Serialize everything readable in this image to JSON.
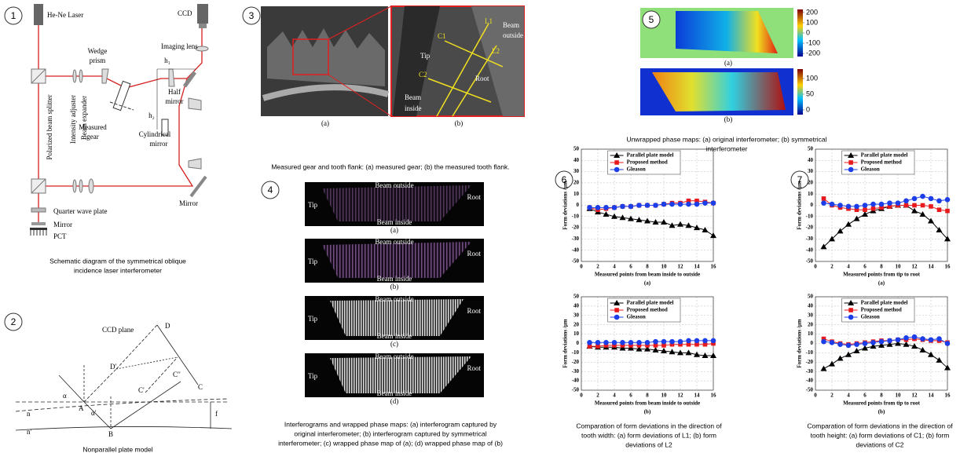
{
  "fig1": {
    "number": "1",
    "labels": [
      "He-Ne Laser",
      "CCD",
      "Imaging lens",
      "Wedge",
      "prism",
      "h₁",
      "Half",
      "mirror",
      "h₂",
      "Measured",
      "gear",
      "Cylindrical",
      "mirror",
      "Polarized beam splitter",
      "Intensity  adjuster",
      "Beam expander",
      "Mirror",
      "Quarter wave plate",
      "Mirror",
      "PCT"
    ],
    "caption": [
      "Schematic diagram of the symmetrical oblique",
      "incidence laser interferometer"
    ]
  },
  "fig2": {
    "number": "2",
    "labels": [
      "CCD  plane",
      "D",
      "D′",
      "C′′",
      "C",
      "C′",
      "α",
      "α′",
      "A",
      "B",
      "n",
      "n′",
      "f"
    ],
    "caption": [
      "Nonparallel plate model"
    ]
  },
  "fig3": {
    "number": "3",
    "labels": [
      "C1",
      "L1",
      "Beam",
      "outside",
      "Tip",
      "L2",
      "C2",
      "Root",
      "Beam",
      "inside"
    ],
    "sublabels": [
      "(a)",
      "(b)"
    ],
    "caption": [
      "Measured gear and tooth flank: (a) measured gear; (b) the measured tooth flank."
    ]
  },
  "fig4": {
    "number": "4",
    "images": [
      {
        "labels": [
          "Beam outside",
          "Tip",
          "Root",
          "Beam inside"
        ],
        "sublabel": "(a)"
      },
      {
        "labels": [
          "Beam outside",
          "Tip",
          "Root",
          "Beam inside"
        ],
        "sublabel": "(b)"
      },
      {
        "labels": [
          "Beam outside",
          "Tip",
          "Root",
          "Beam inside"
        ],
        "sublabel": "(c)"
      },
      {
        "labels": [
          "Beam outside",
          "Tip",
          "Root",
          "Beam inside"
        ],
        "sublabel": "(d)"
      }
    ],
    "caption": [
      "Interferograms and wrapped phase maps: (a) interferogram captured by",
      "original interferometer; (b) interferogram captured by symmetrical",
      "interferometer; (c) wrapped phase map of (a); (d) wrapped phase map of (b)"
    ]
  },
  "fig5": {
    "number": "5",
    "maps": [
      {
        "sublabel": "(a)",
        "colorbar": {
          "clim": [
            -230,
            230
          ],
          "ticks": [
            -200,
            -100,
            0,
            100,
            200
          ]
        }
      },
      {
        "sublabel": "(b)",
        "colorbar": {
          "clim": [
            -15,
            130
          ],
          "ticks": [
            0,
            50,
            100
          ]
        }
      }
    ],
    "caption": [
      "Unwrapped phase maps: (a) original interferometer; (b) symmetrical",
      "interferometer"
    ]
  },
  "fig6": {
    "number": "6",
    "charts": [
      {
        "type": "line",
        "ylabel": "Form deviations /μm",
        "xlabel": "Measured points from beam inside to outside",
        "sublabel": "(a)",
        "x": [
          1,
          2,
          3,
          4,
          5,
          6,
          7,
          8,
          9,
          10,
          11,
          12,
          13,
          14,
          15,
          16
        ],
        "xlim": [
          0,
          16
        ],
        "xticks": [
          0,
          2,
          4,
          6,
          8,
          10,
          12,
          14,
          16
        ],
        "ylim": [
          -50,
          50
        ],
        "yticks": [
          50,
          40,
          30,
          20,
          10,
          0,
          -10,
          -20,
          -30,
          -40,
          -50
        ],
        "grid": true,
        "legend": "top",
        "series": [
          {
            "name": "Parallel plate model",
            "color": "#000000",
            "marker": "triangle",
            "values": [
              -3,
              -6,
              -8,
              -10,
              -11,
              -12,
              -13,
              -14,
              -15,
              -15,
              -18,
              -17,
              -18,
              -20,
              -22,
              -27
            ]
          },
          {
            "name": "Proposed method",
            "color": "#e8191c",
            "marker": "square",
            "values": [
              -2,
              -4,
              -3,
              -2,
              -1,
              -1,
              0,
              0,
              0,
              1,
              2,
              2,
              4,
              4,
              3,
              2
            ]
          },
          {
            "name": "Gleason",
            "color": "#1c3ee8",
            "marker": "circle",
            "values": [
              -2,
              -2,
              -2,
              -2,
              -1,
              -1,
              0,
              0,
              0,
              1,
              1,
              1,
              1,
              1,
              2,
              2
            ]
          }
        ]
      },
      {
        "type": "line",
        "ylabel": "Form deviations /μm",
        "xlabel": "Measured points from beam inside to outside",
        "sublabel": "(b)",
        "x": [
          1,
          2,
          3,
          4,
          5,
          6,
          7,
          8,
          9,
          10,
          11,
          12,
          13,
          14,
          15,
          16
        ],
        "xlim": [
          0,
          16
        ],
        "xticks": [
          0,
          2,
          4,
          6,
          8,
          10,
          12,
          14,
          16
        ],
        "ylim": [
          -50,
          50
        ],
        "yticks": [
          50,
          40,
          30,
          20,
          10,
          0,
          -10,
          -20,
          -30,
          -40,
          -50
        ],
        "grid": true,
        "legend": "top",
        "series": [
          {
            "name": "Parallel plate model",
            "color": "#000000",
            "marker": "triangle",
            "values": [
              -3,
              -4,
              -4,
              -4,
              -5,
              -5,
              -6,
              -6,
              -7,
              -8,
              -9,
              -10,
              -10,
              -12,
              -13,
              -13
            ]
          },
          {
            "name": "Proposed method",
            "color": "#e8191c",
            "marker": "square",
            "values": [
              -3,
              -3,
              -2,
              -2,
              -2,
              -2,
              -2,
              -2,
              -2,
              -2,
              -1,
              -1,
              -1,
              -1,
              -1,
              0
            ]
          },
          {
            "name": "Gleason",
            "color": "#1c3ee8",
            "marker": "circle",
            "values": [
              1,
              1,
              1,
              1,
              1,
              1,
              1,
              1,
              2,
              2,
              2,
              2,
              3,
              3,
              3,
              3
            ]
          }
        ]
      }
    ],
    "caption": [
      "Comparation of form deviations in the direction of",
      "tooth width: (a) form deviations of L1; (b) form",
      "deviations of L2"
    ]
  },
  "fig7": {
    "number": "7",
    "charts": [
      {
        "type": "line",
        "ylabel": "Form deviations /μm",
        "xlabel": "Measured points from tip to root",
        "sublabel": "(a)",
        "x": [
          1,
          2,
          3,
          4,
          5,
          6,
          7,
          8,
          9,
          10,
          11,
          12,
          13,
          14,
          15,
          16
        ],
        "xlim": [
          0,
          16
        ],
        "xticks": [
          0,
          2,
          4,
          6,
          8,
          10,
          12,
          14,
          16
        ],
        "ylim": [
          -50,
          50
        ],
        "yticks": [
          50,
          40,
          30,
          20,
          10,
          0,
          -10,
          -20,
          -30,
          -40,
          -50
        ],
        "grid": true,
        "legend": "top",
        "series": [
          {
            "name": "Parallel plate model",
            "color": "#000000",
            "marker": "triangle",
            "values": [
              -37,
              -30,
              -23,
              -17,
              -12,
              -8,
              -5,
              -3,
              -1,
              0,
              0,
              -5,
              -8,
              -14,
              -22,
              -30
            ]
          },
          {
            "name": "Proposed method",
            "color": "#e8191c",
            "marker": "square",
            "values": [
              6,
              0,
              -2,
              -3,
              -4,
              -4,
              -3,
              -2,
              -1,
              0,
              0,
              0,
              0,
              -1,
              -4,
              -5
            ]
          },
          {
            "name": "Gleason",
            "color": "#1c3ee8",
            "marker": "circle",
            "values": [
              2,
              1,
              0,
              -1,
              -1,
              0,
              1,
              1,
              2,
              2,
              4,
              6,
              8,
              6,
              4,
              5
            ]
          }
        ]
      },
      {
        "type": "line",
        "ylabel": "Form deviations /μm",
        "xlabel": "Measured points from tip to root",
        "sublabel": "(b)",
        "x": [
          1,
          2,
          3,
          4,
          5,
          6,
          7,
          8,
          9,
          10,
          11,
          12,
          13,
          14,
          15,
          16
        ],
        "xlim": [
          0,
          16
        ],
        "xticks": [
          0,
          2,
          4,
          6,
          8,
          10,
          12,
          14,
          16
        ],
        "ylim": [
          -50,
          50
        ],
        "yticks": [
          50,
          40,
          30,
          20,
          10,
          0,
          -10,
          -20,
          -30,
          -40,
          -50
        ],
        "grid": true,
        "legend": "top",
        "series": [
          {
            "name": "Parallel plate model",
            "color": "#000000",
            "marker": "triangle",
            "values": [
              -27,
              -22,
              -16,
              -12,
              -8,
              -5,
              -3,
              -2,
              -1,
              0,
              -1,
              -3,
              -7,
              -12,
              -18,
              -26
            ]
          },
          {
            "name": "Proposed method",
            "color": "#e8191c",
            "marker": "square",
            "values": [
              5,
              2,
              0,
              -1,
              0,
              1,
              2,
              3,
              3,
              4,
              4,
              5,
              4,
              3,
              3,
              1
            ]
          },
          {
            "name": "Gleason",
            "color": "#1c3ee8",
            "marker": "circle",
            "values": [
              2,
              1,
              -1,
              -2,
              -1,
              0,
              1,
              2,
              3,
              4,
              6,
              7,
              5,
              4,
              5,
              0
            ]
          }
        ]
      }
    ],
    "caption": [
      "Comparation of form deviations in the direction of",
      "tooth height: (a) form deviations of C1; (b) form",
      "deviations of C2"
    ]
  }
}
